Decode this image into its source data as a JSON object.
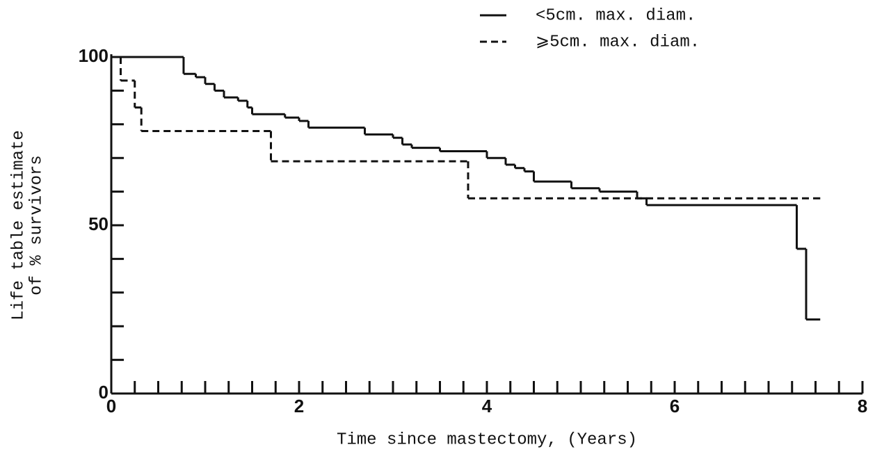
{
  "chart_data": {
    "type": "step",
    "ylabel": [
      "Life table estimate",
      "of % survivors"
    ],
    "xlabel": "Time since mastectomy, (Years)",
    "xlim": [
      0,
      8
    ],
    "ylim": [
      0,
      100
    ],
    "xticks": [
      0,
      2,
      4,
      6,
      8
    ],
    "yticks": [
      0,
      50,
      100
    ],
    "x_minor_ticks": [
      0.25,
      0.5,
      0.75,
      1,
      1.25,
      1.5,
      1.75,
      2.25,
      2.5,
      2.75,
      3,
      3.25,
      3.5,
      3.75,
      4.25,
      4.5,
      4.75,
      5,
      5.25,
      5.5,
      5.75,
      6.25,
      6.5,
      6.75,
      7,
      7.25,
      7.5,
      7.75
    ],
    "y_minor_ticks": [
      10,
      20,
      30,
      40,
      60,
      70,
      80,
      90
    ],
    "series": [
      {
        "name": "<5cm. max. diam.",
        "color": "#111111",
        "dashed": false,
        "x": [
          0,
          0.77,
          0.9,
          1.0,
          1.1,
          1.2,
          1.35,
          1.45,
          1.5,
          1.85,
          2.0,
          2.1,
          2.7,
          3.0,
          3.1,
          3.2,
          3.5,
          4.0,
          4.2,
          4.3,
          4.4,
          4.5,
          4.9,
          5.2,
          5.6,
          5.7,
          7.3,
          7.4,
          7.55
        ],
        "values": [
          100,
          95,
          94,
          92,
          90,
          88,
          87,
          85,
          83,
          82,
          81,
          79,
          77,
          76,
          74,
          73,
          72,
          70,
          68,
          67,
          66,
          63,
          61,
          60,
          58,
          56,
          43,
          22,
          22
        ]
      },
      {
        "name": "⩾5cm. max. diam.",
        "color": "#111111",
        "dashed": true,
        "x": [
          0,
          0.1,
          0.25,
          0.32,
          1.7,
          3.8,
          7.55
        ],
        "values": [
          100,
          93,
          85,
          78,
          69,
          58,
          58
        ]
      }
    ]
  }
}
